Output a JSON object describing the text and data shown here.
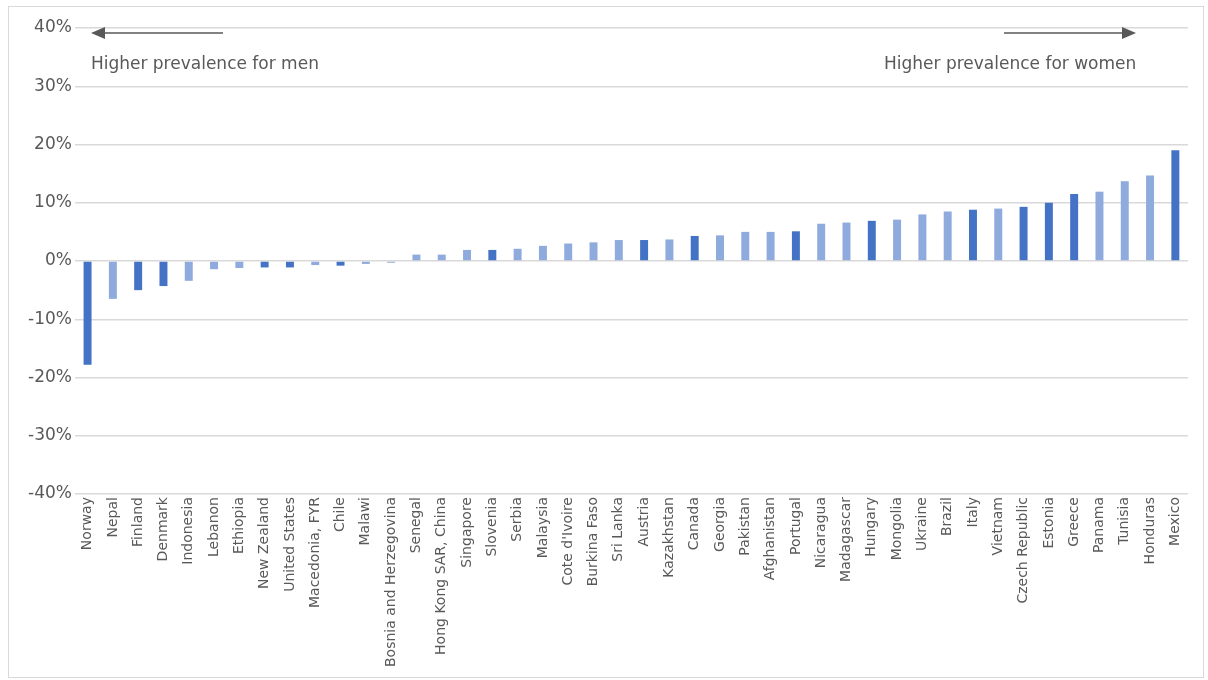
{
  "chart_data": {
    "type": "bar",
    "categories": [
      "Norway",
      "Nepal",
      "Finland",
      "Denmark",
      "Indonesia",
      "Lebanon",
      "Ethiopia",
      "New Zealand",
      "United States",
      "Macedonia, FYR",
      "Chile",
      "Malawi",
      "Bosnia and Herzegovina",
      "Senegal",
      "Hong Kong SAR, China",
      "Singapore",
      "Slovenia",
      "Serbia",
      "Malaysia",
      "Cote d'Ivoire",
      "Burkina Faso",
      "Sri Lanka",
      "Austria",
      "Kazakhstan",
      "Canada",
      "Georgia",
      "Pakistan",
      "Afghanistan",
      "Portugal",
      "Nicaragua",
      "Madagascar",
      "Hungary",
      "Mongolia",
      "Ukraine",
      "Brazil",
      "Italy",
      "Vietnam",
      "Czech Republic",
      "Estonia",
      "Greece",
      "Panama",
      "Tunisia",
      "Honduras",
      "Mexico"
    ],
    "values": [
      -17.8,
      -6.5,
      -5.0,
      -4.3,
      -3.4,
      -1.4,
      -1.2,
      -1.1,
      -1.1,
      -0.7,
      -0.8,
      -0.5,
      -0.3,
      1.1,
      1.1,
      1.9,
      1.9,
      2.1,
      2.6,
      3.0,
      3.2,
      3.6,
      3.6,
      3.7,
      4.3,
      4.4,
      5.0,
      5.0,
      5.1,
      6.4,
      6.6,
      6.9,
      7.1,
      8.0,
      8.5,
      8.8,
      9.0,
      9.3,
      10.0,
      11.5,
      11.9,
      13.7,
      14.7,
      19.0
    ],
    "colors": [
      "#4472c4",
      "#8faadc",
      "#4472c4",
      "#4472c4",
      "#8faadc",
      "#8faadc",
      "#8faadc",
      "#4472c4",
      "#4472c4",
      "#8faadc",
      "#4472c4",
      "#8faadc",
      "#8faadc",
      "#8faadc",
      "#8faadc",
      "#8faadc",
      "#4472c4",
      "#8faadc",
      "#8faadc",
      "#8faadc",
      "#8faadc",
      "#8faadc",
      "#4472c4",
      "#8faadc",
      "#4472c4",
      "#8faadc",
      "#8faadc",
      "#8faadc",
      "#4472c4",
      "#8faadc",
      "#8faadc",
      "#4472c4",
      "#8faadc",
      "#8faadc",
      "#8faadc",
      "#4472c4",
      "#8faadc",
      "#4472c4",
      "#4472c4",
      "#4472c4",
      "#8faadc",
      "#8faadc",
      "#8faadc",
      "#4472c4"
    ],
    "ylim": [
      -40,
      40
    ],
    "yticks": [
      {
        "value": -40,
        "label": "-40%"
      },
      {
        "value": -30,
        "label": "-30%"
      },
      {
        "value": -20,
        "label": "-20%"
      },
      {
        "value": -10,
        "label": "-10%"
      },
      {
        "value": 0,
        "label": "0%"
      },
      {
        "value": 10,
        "label": "10%"
      },
      {
        "value": 20,
        "label": "20%"
      },
      {
        "value": 30,
        "label": "30%"
      },
      {
        "value": 40,
        "label": "40%"
      }
    ],
    "grid": "y",
    "legend": false,
    "annotations": [
      "Higher prevalence for men",
      "Higher prevalence for women"
    ]
  }
}
